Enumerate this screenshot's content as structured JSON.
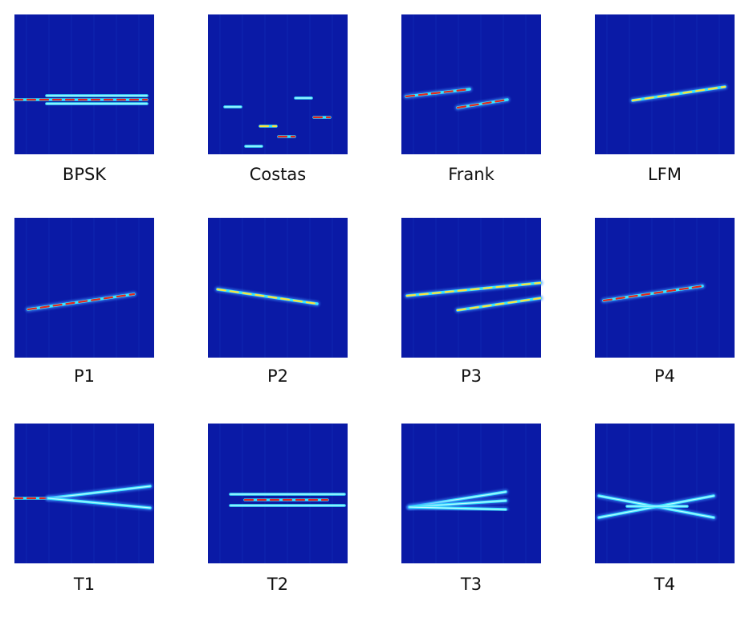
{
  "panels": [
    {
      "label": "BPSK"
    },
    {
      "label": "Costas"
    },
    {
      "label": "Frank"
    },
    {
      "label": "LFM"
    },
    {
      "label": "P1"
    },
    {
      "label": "P2"
    },
    {
      "label": "P3"
    },
    {
      "label": "P4"
    },
    {
      "label": "T1"
    },
    {
      "label": "T2"
    },
    {
      "label": "T3"
    },
    {
      "label": "T4"
    }
  ]
}
